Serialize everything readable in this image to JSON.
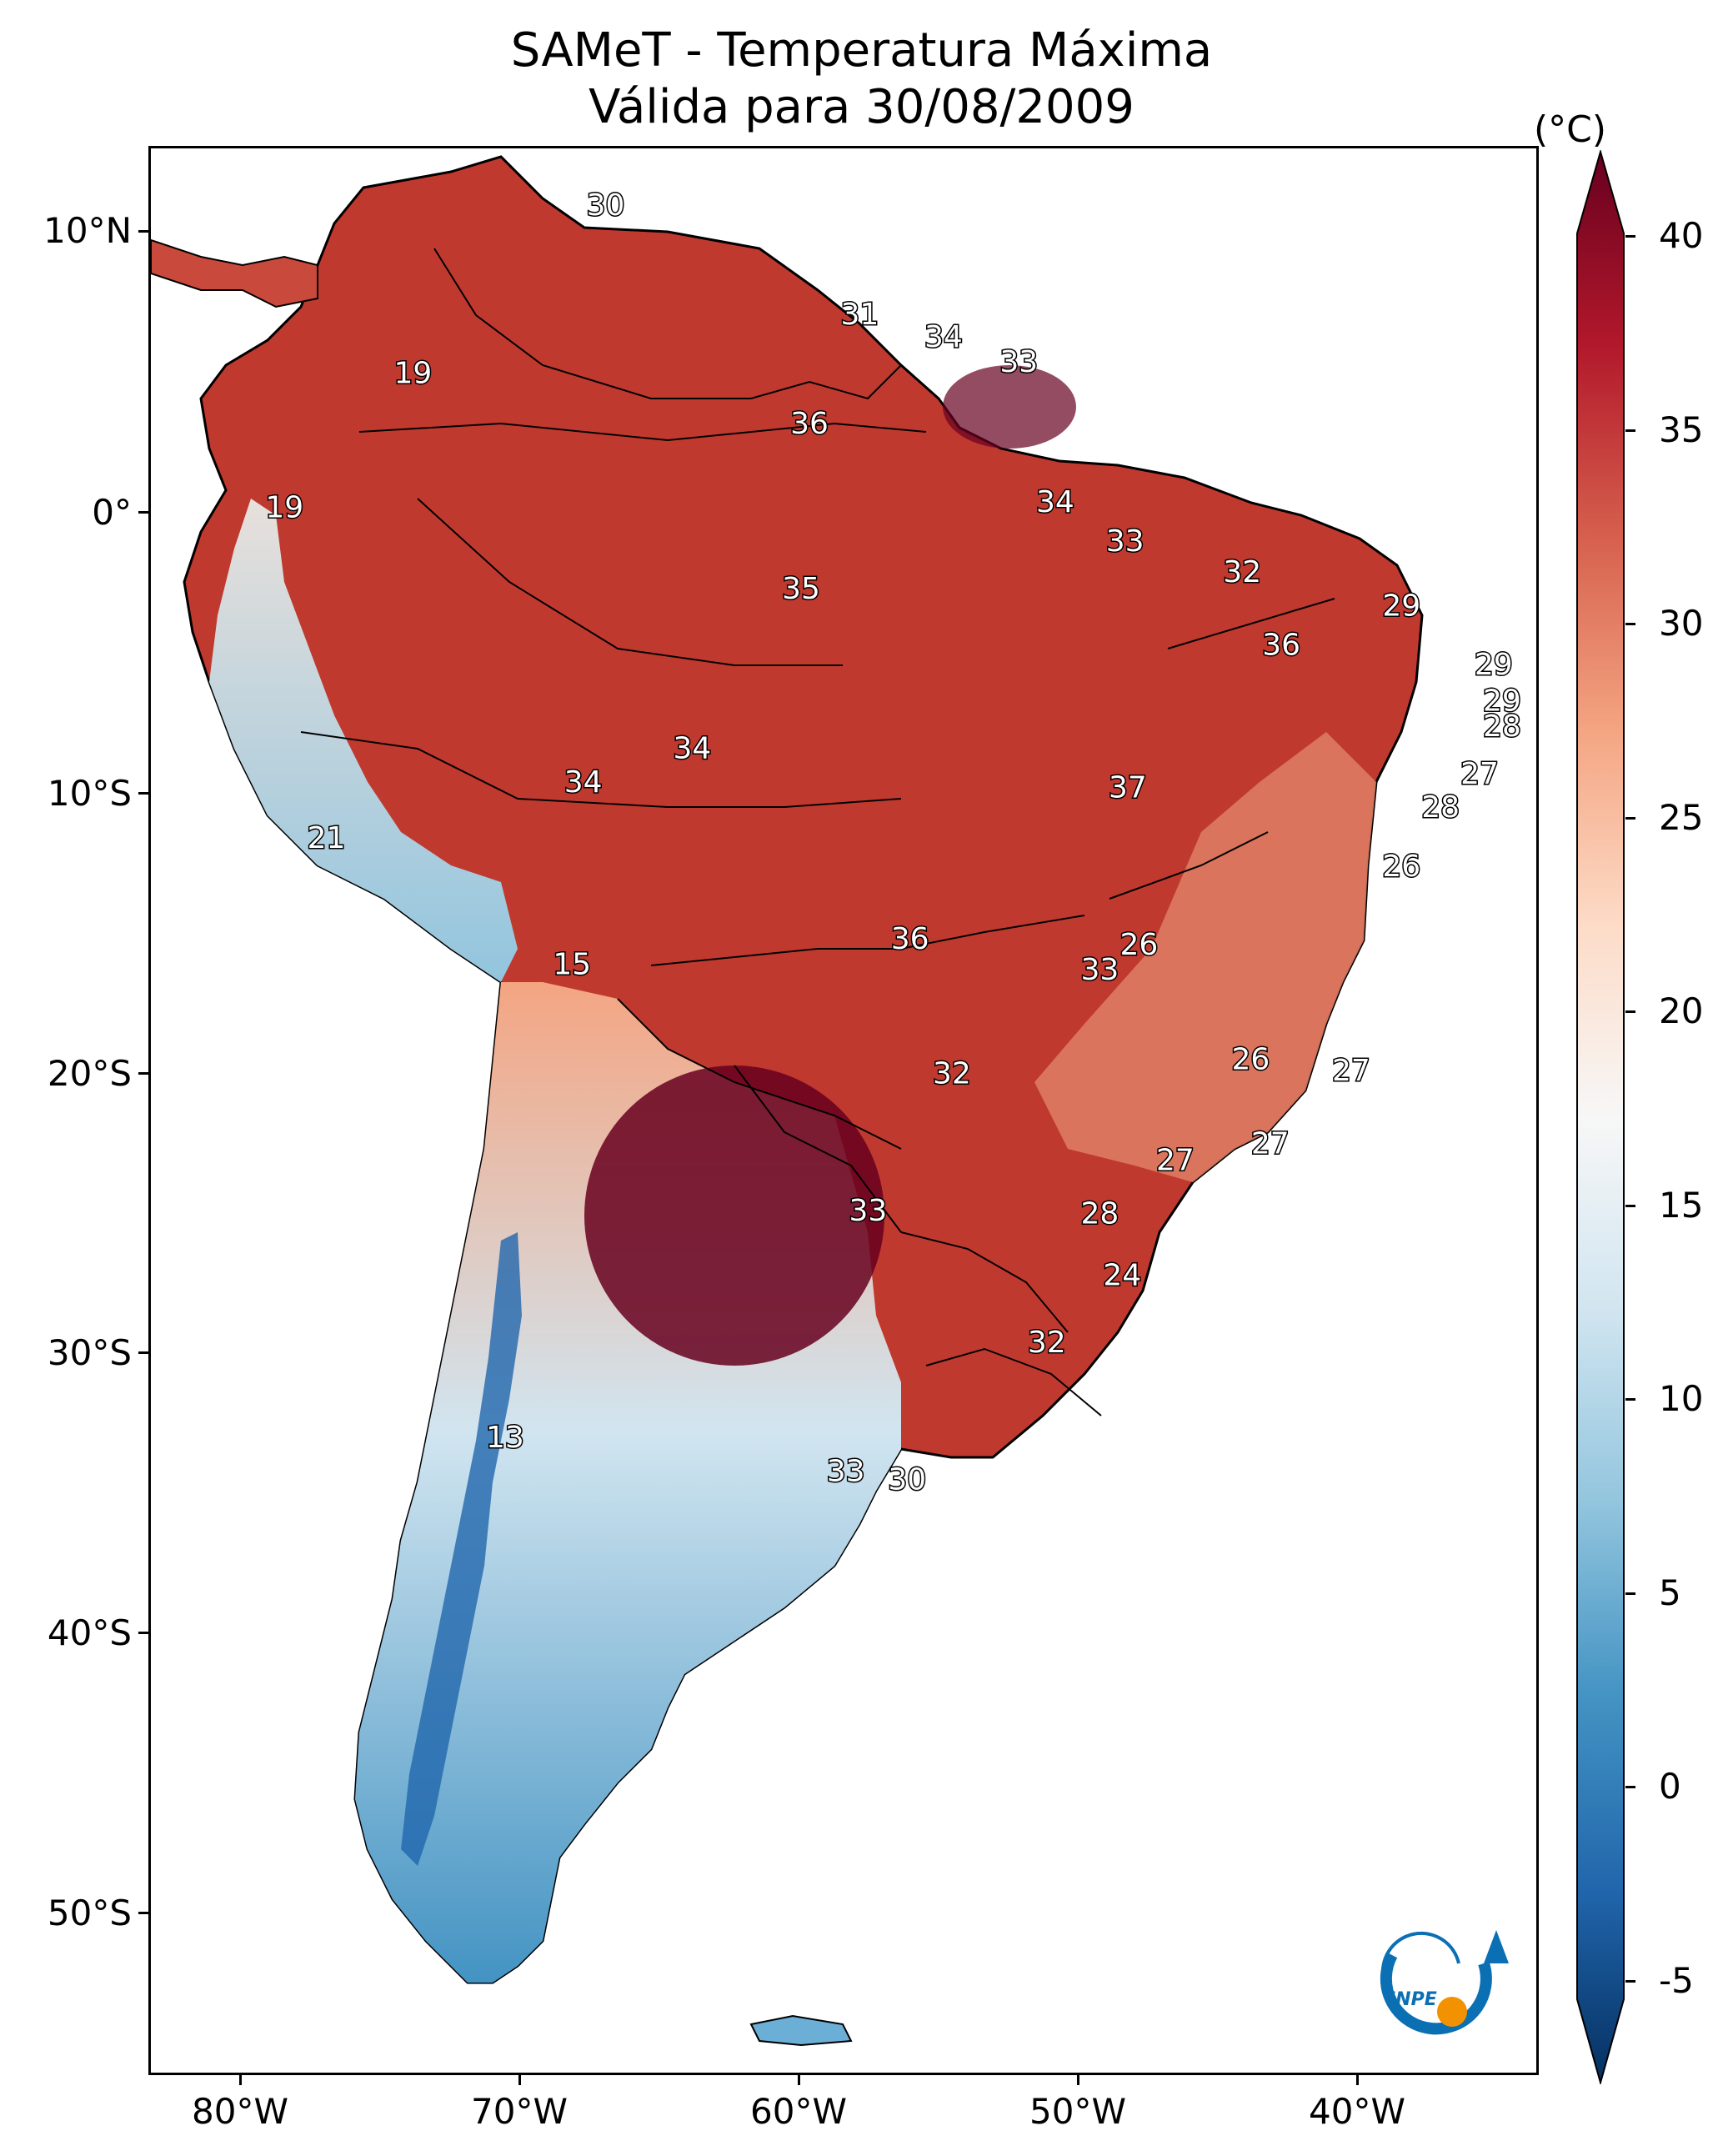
{
  "header": {
    "title_line1": "SAMeT - Temperatura Máxima",
    "title_line2": "Válida para 30/08/2009"
  },
  "map": {
    "lat_labels": [
      "10°N",
      "0°",
      "10°S",
      "20°S",
      "30°S",
      "40°S",
      "50°S"
    ],
    "lon_labels": [
      "80°W",
      "70°W",
      "60°W",
      "50°W",
      "40°W"
    ],
    "station_values": [
      {
        "lon": -67.0,
        "lat": 10.6,
        "value": "30"
      },
      {
        "lon": -57.9,
        "lat": 6.7,
        "value": "31"
      },
      {
        "lon": -54.9,
        "lat": 5.9,
        "value": "34"
      },
      {
        "lon": -52.2,
        "lat": 5.0,
        "value": "33"
      },
      {
        "lon": -73.9,
        "lat": 4.6,
        "value": "19"
      },
      {
        "lon": -59.7,
        "lat": 2.8,
        "value": "36"
      },
      {
        "lon": -78.5,
        "lat": -0.2,
        "value": "19"
      },
      {
        "lon": -50.9,
        "lat": 0.0,
        "value": "34"
      },
      {
        "lon": -48.4,
        "lat": -1.4,
        "value": "33"
      },
      {
        "lon": -44.2,
        "lat": -2.5,
        "value": "32"
      },
      {
        "lon": -60.0,
        "lat": -3.1,
        "value": "35"
      },
      {
        "lon": -38.5,
        "lat": -3.7,
        "value": "29"
      },
      {
        "lon": -42.8,
        "lat": -5.1,
        "value": "36"
      },
      {
        "lon": -35.2,
        "lat": -5.8,
        "value": "29"
      },
      {
        "lon": -34.9,
        "lat": -7.1,
        "value": "29"
      },
      {
        "lon": -34.9,
        "lat": -8.0,
        "value": "28"
      },
      {
        "lon": -63.9,
        "lat": -8.8,
        "value": "34"
      },
      {
        "lon": -67.8,
        "lat": -10.0,
        "value": "34"
      },
      {
        "lon": -35.7,
        "lat": -9.7,
        "value": "27"
      },
      {
        "lon": -48.3,
        "lat": -10.2,
        "value": "37"
      },
      {
        "lon": -37.1,
        "lat": -10.9,
        "value": "28"
      },
      {
        "lon": -77.0,
        "lat": -12.0,
        "value": "21"
      },
      {
        "lon": -38.5,
        "lat": -13.0,
        "value": "26"
      },
      {
        "lon": -56.1,
        "lat": -15.6,
        "value": "36"
      },
      {
        "lon": -47.9,
        "lat": -15.8,
        "value": "26"
      },
      {
        "lon": -68.2,
        "lat": -16.5,
        "value": "15"
      },
      {
        "lon": -49.3,
        "lat": -16.7,
        "value": "33"
      },
      {
        "lon": -43.9,
        "lat": -19.9,
        "value": "26"
      },
      {
        "lon": -40.3,
        "lat": -20.3,
        "value": "27"
      },
      {
        "lon": -54.6,
        "lat": -20.4,
        "value": "32"
      },
      {
        "lon": -43.2,
        "lat": -22.9,
        "value": "27"
      },
      {
        "lon": -46.6,
        "lat": -23.5,
        "value": "27"
      },
      {
        "lon": -57.6,
        "lat": -25.3,
        "value": "33"
      },
      {
        "lon": -49.3,
        "lat": -25.4,
        "value": "28"
      },
      {
        "lon": -48.5,
        "lat": -27.6,
        "value": "24"
      },
      {
        "lon": -51.2,
        "lat": -30.0,
        "value": "32"
      },
      {
        "lon": -70.6,
        "lat": -33.4,
        "value": "13"
      },
      {
        "lon": -58.4,
        "lat": -34.6,
        "value": "33"
      },
      {
        "lon": -56.2,
        "lat": -34.9,
        "value": "30"
      }
    ]
  },
  "colorbar": {
    "unit": "(°C)",
    "tick_labels": [
      "40",
      "35",
      "30",
      "25",
      "20",
      "15",
      "10",
      "5",
      "0",
      "-5"
    ],
    "range": [
      -5,
      40
    ],
    "colors": [
      "#053061",
      "#2166ac",
      "#4393c3",
      "#92c5de",
      "#d1e5f0",
      "#f7f7f7",
      "#fddbc7",
      "#f4a582",
      "#d6604d",
      "#b2182b",
      "#67001f"
    ]
  },
  "logo": {
    "text": "INPE",
    "colors": [
      "#0b6fb4",
      "#f39200"
    ]
  }
}
